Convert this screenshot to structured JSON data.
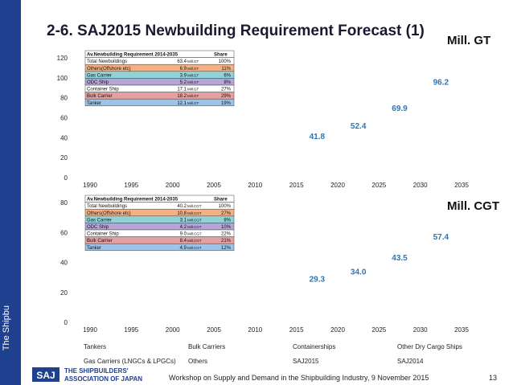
{
  "slide": {
    "title": "2-6. SAJ2015 Newbuilding Requirement Forecast (1)",
    "sidebar_text": "The Shipbu",
    "footer": "Workshop on Supply and Demand in the Shipbuilding Industry, 9 November 2015",
    "page_number": "13",
    "logo_abbrev": "SAJ",
    "logo_line1": "THE SHIPBUILDERS'",
    "logo_line2": "ASSOCIATION OF JAPAN"
  },
  "legend": [
    [
      "Tankers",
      "Bulk Carriers",
      "Containerships",
      "Other Dry Cargo Ships"
    ],
    [
      "Gas Carriers (LNGCs & LPGCs)",
      "Others",
      "SAJ2015",
      "SAJ2014"
    ]
  ],
  "colors": {
    "sidebar": "#1f3f8f",
    "data_label": "#2e75b6",
    "table_header": "#ffffff",
    "row_total": "#ffffff",
    "row_others": "#f4b183",
    "row_gas": "#8fd3d9",
    "row_odc": "#b4a7d6",
    "row_container": "#ffffff",
    "row_bulk": "#e6a0a0",
    "row_tanker": "#9dc3e6"
  },
  "chart_data": [
    {
      "type": "table",
      "unit": "Mill. GT",
      "x": [
        1990,
        1995,
        2000,
        2005,
        2010,
        2015,
        2020,
        2025,
        2030,
        2035
      ],
      "ylim": [
        0,
        120
      ],
      "yticks": [
        0,
        20,
        40,
        60,
        80,
        100,
        120
      ],
      "data_labels": [
        {
          "x": 2017.5,
          "value": "41.8"
        },
        {
          "x": 2022.5,
          "value": "52.4"
        },
        {
          "x": 2027.5,
          "value": "69.9"
        },
        {
          "x": 2032.5,
          "value": "96.2"
        }
      ],
      "table": {
        "header": [
          "Av.Newbuilding Requirement 2014-2035",
          "",
          "Share"
        ],
        "rows": [
          {
            "label": "Total Newbuildings",
            "value": "63.4",
            "unit": "Mill.GT",
            "share": "100%",
            "color_key": "row_total"
          },
          {
            "label": "Others(Offshore etc)",
            "value": "6.9",
            "unit": "Mill.GT",
            "share": "11%",
            "color_key": "row_others"
          },
          {
            "label": "Gas Carrier",
            "value": "3.9",
            "unit": "Mill.GT",
            "share": "6%",
            "color_key": "row_gas"
          },
          {
            "label": "ODC Ship",
            "value": "5.2",
            "unit": "Mill.GT",
            "share": "8%",
            "color_key": "row_odc"
          },
          {
            "label": "Container Ship",
            "value": "17.1",
            "unit": "Mill.GT",
            "share": "27%",
            "color_key": "row_container"
          },
          {
            "label": "Bulk Carrier",
            "value": "18.2",
            "unit": "Mill.GT",
            "share": "29%",
            "color_key": "row_bulk"
          },
          {
            "label": "Tanker",
            "value": "12.1",
            "unit": "Mill.GT",
            "share": "19%",
            "color_key": "row_tanker"
          }
        ]
      }
    },
    {
      "type": "table",
      "unit": "Mill. CGT",
      "x": [
        1990,
        1995,
        2000,
        2005,
        2010,
        2015,
        2020,
        2025,
        2030,
        2035
      ],
      "ylim": [
        0,
        80
      ],
      "yticks": [
        0,
        20,
        40,
        60,
        80
      ],
      "data_labels": [
        {
          "x": 2017.5,
          "value": "29.3"
        },
        {
          "x": 2022.5,
          "value": "34.0"
        },
        {
          "x": 2027.5,
          "value": "43.5"
        },
        {
          "x": 2032.5,
          "value": "57.4"
        }
      ],
      "table": {
        "header": [
          "Av.Newbuilding Requirement 2014-2035",
          "",
          "Share"
        ],
        "rows": [
          {
            "label": "Total Newbuildings",
            "value": "40.2",
            "unit": "Mill.CGT",
            "share": "100%",
            "color_key": "row_total"
          },
          {
            "label": "Others(Offshore etc)",
            "value": "10.8",
            "unit": "Mill.CGT",
            "share": "27%",
            "color_key": "row_others"
          },
          {
            "label": "Gas Carrier",
            "value": "3.1",
            "unit": "Mill.CGT",
            "share": "8%",
            "color_key": "row_gas"
          },
          {
            "label": "ODC Ship",
            "value": "4.2",
            "unit": "Mill.CGT",
            "share": "10%",
            "color_key": "row_odc"
          },
          {
            "label": "Container Ship",
            "value": "9.0",
            "unit": "Mill.CGT",
            "share": "22%",
            "color_key": "row_container"
          },
          {
            "label": "Bulk Carrier",
            "value": "8.4",
            "unit": "Mill.CGT",
            "share": "21%",
            "color_key": "row_bulk"
          },
          {
            "label": "Tanker",
            "value": "4.9",
            "unit": "Mill.CGT",
            "share": "12%",
            "color_key": "row_tanker"
          }
        ]
      }
    }
  ]
}
